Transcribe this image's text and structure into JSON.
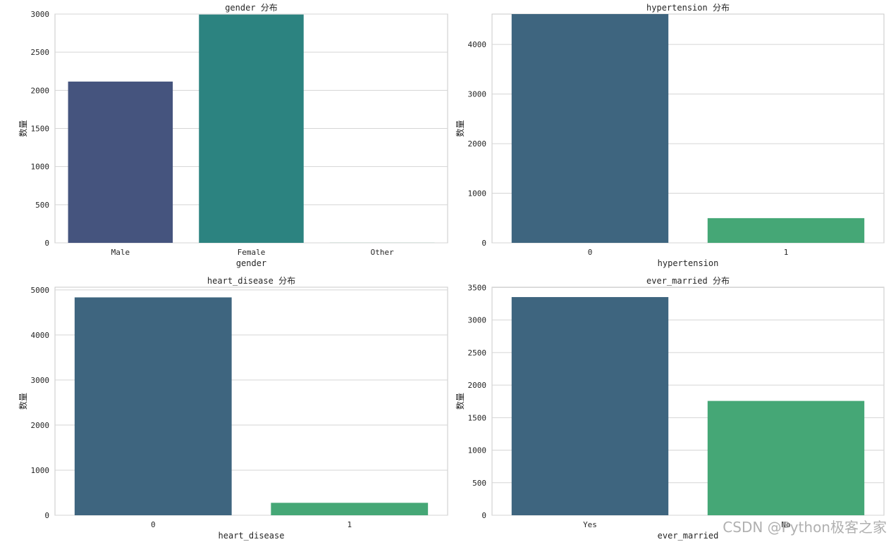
{
  "figure": {
    "watermark": "CSDN @Python极客之家",
    "colors": {
      "grid": "#d5d5d5",
      "frame": "#c8c8c8",
      "text": "#262626"
    }
  },
  "chart_data": [
    {
      "type": "bar",
      "title": "gender 分布",
      "xlabel": "gender",
      "ylabel": "数量",
      "categories": [
        "Male",
        "Female",
        "Other"
      ],
      "values": [
        2115,
        2994,
        1
      ],
      "ylim": [
        0,
        3000
      ],
      "yticks": [
        0,
        500,
        1000,
        1500,
        2000,
        2500,
        3000
      ],
      "colors": [
        "#45547e",
        "#2c8380",
        "#3a9a73"
      ]
    },
    {
      "type": "bar",
      "title": "hypertension 分布",
      "xlabel": "hypertension",
      "ylabel": "数量",
      "categories": [
        "0",
        "1"
      ],
      "values": [
        4612,
        498
      ],
      "ylim": [
        0,
        4612
      ],
      "yticks": [
        0,
        1000,
        2000,
        3000,
        4000
      ],
      "colors": [
        "#3e657f",
        "#45a776"
      ]
    },
    {
      "type": "bar",
      "title": "heart_disease 分布",
      "xlabel": "heart_disease",
      "ylabel": "数量",
      "categories": [
        "0",
        "1"
      ],
      "values": [
        4834,
        276
      ],
      "ylim": [
        0,
        5060
      ],
      "yticks": [
        0,
        1000,
        2000,
        3000,
        4000,
        5000
      ],
      "colors": [
        "#3e657f",
        "#45a776"
      ]
    },
    {
      "type": "bar",
      "title": "ever_married 分布",
      "xlabel": "ever_married",
      "ylabel": "数量",
      "categories": [
        "Yes",
        "No"
      ],
      "values": [
        3353,
        1757
      ],
      "ylim": [
        0,
        3505
      ],
      "yticks": [
        0,
        500,
        1000,
        1500,
        2000,
        2500,
        3000,
        3500
      ],
      "colors": [
        "#3e657f",
        "#45a776"
      ]
    }
  ]
}
